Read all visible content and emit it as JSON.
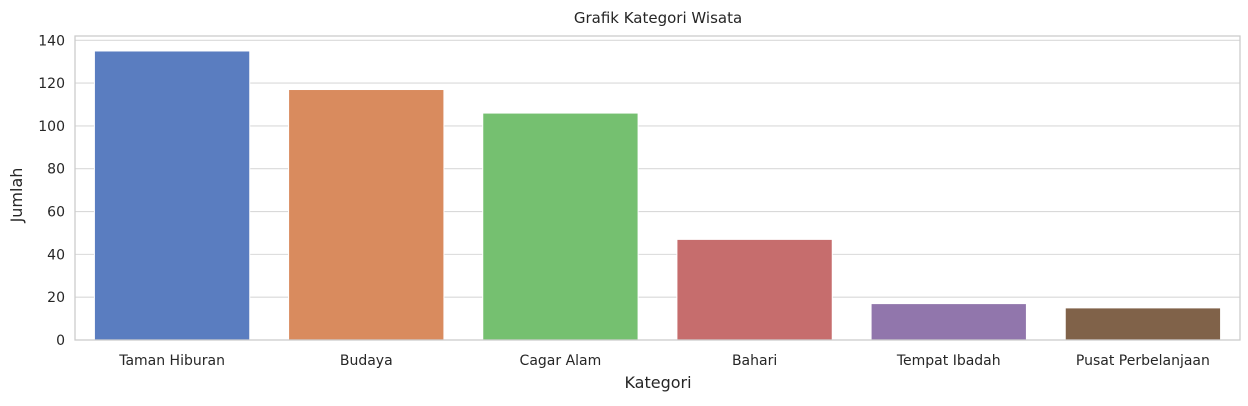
{
  "chart_data": {
    "type": "bar",
    "title": "Grafik Kategori Wisata",
    "xlabel": "Kategori",
    "ylabel": "Jumlah",
    "categories": [
      "Taman Hiburan",
      "Budaya",
      "Cagar Alam",
      "Bahari",
      "Tempat Ibadah",
      "Pusat Perbelanjaan"
    ],
    "values": [
      135,
      117,
      106,
      47,
      17,
      15
    ],
    "colors": [
      "#5a7dc0",
      "#d98b5e",
      "#75c070",
      "#c66d6d",
      "#9176ac",
      "#806249"
    ],
    "ylim": [
      0,
      142
    ],
    "yticks": [
      0,
      20,
      40,
      60,
      80,
      100,
      120,
      140
    ],
    "grid": "horizontal",
    "legend": "none"
  }
}
